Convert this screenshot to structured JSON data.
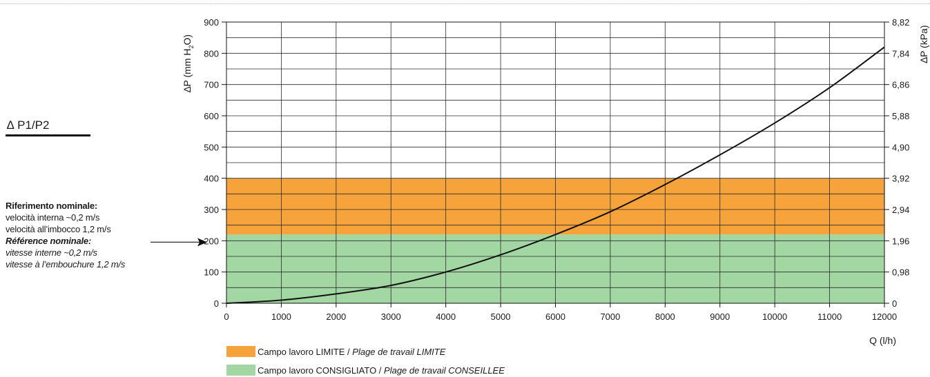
{
  "side_label": "∆ P1/P2",
  "reference": {
    "it_title": "Riferimento nominale:",
    "it_line1": "velocità interna ~0,2 m/s",
    "it_line2": "velocità all’imbocco 1,2 m/s",
    "fr_title": "Référence nominale:",
    "fr_line1": "vitesse interne ~0,2 m/s",
    "fr_line2": "vitesse à l’embouchure 1,2 m/s"
  },
  "legend": [
    {
      "label": "Campo lavoro LIMITE / ",
      "label_italic": "Plage de travail LIMITE",
      "color": "#f6a33c"
    },
    {
      "label": "Campo lavoro CONSIGLIATO / ",
      "label_italic": "Plage de travail CONSEILLEE",
      "color": "#a2d6a2"
    }
  ],
  "chart_data": {
    "type": "line",
    "xlabel": "Q (l/h)",
    "ylabel_left_prefix": "∆P (mm H",
    "ylabel_left_sub": "2",
    "ylabel_left_suffix": "O)",
    "ylabel_right": "∆P (kPa)",
    "xlim": [
      0,
      12000
    ],
    "ylim": [
      0,
      900
    ],
    "x_ticks": [
      0,
      1000,
      2000,
      3000,
      4000,
      5000,
      6000,
      7000,
      8000,
      9000,
      10000,
      11000,
      12000
    ],
    "y_ticks": [
      0,
      100,
      200,
      300,
      400,
      500,
      600,
      700,
      800,
      900
    ],
    "y_right_ticks": [
      "0",
      "0,98",
      "1,96",
      "2,94",
      "3,92",
      "4,90",
      "5,88",
      "6,86",
      "7,84",
      "8,82"
    ],
    "grid": true,
    "bands": [
      {
        "name": "Campo lavoro CONSIGLIATO",
        "from": 0,
        "to": 220,
        "color": "#a2d6a2"
      },
      {
        "name": "Campo lavoro LIMITE",
        "from": 220,
        "to": 400,
        "color": "#f6a33c"
      }
    ],
    "series": [
      {
        "x": [
          0,
          1000,
          2000,
          3000,
          4000,
          5000,
          6000,
          7000,
          8000,
          9000,
          10000,
          11000,
          12000
        ],
        "y": [
          0,
          10,
          30,
          57,
          100,
          155,
          220,
          293,
          380,
          475,
          577,
          690,
          820
        ],
        "color": "#111111"
      }
    ],
    "annotation": {
      "type": "arrow",
      "target_y": 200
    }
  }
}
